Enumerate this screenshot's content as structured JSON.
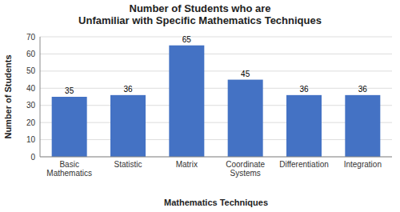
{
  "chart_data": {
    "type": "bar",
    "title": "Number of Students who are\nUnfamiliar with Specific Mathematics Techniques",
    "xlabel": "Mathematics Techniques",
    "ylabel": "Number of Students",
    "categories": [
      "Basic\nMathematics",
      "Statistic",
      "Matrix",
      "Coordinate\nSystems",
      "Differentiation",
      "Integration"
    ],
    "values": [
      35,
      36,
      65,
      45,
      36,
      36
    ],
    "color": "#4472c4",
    "ylim": [
      0,
      70
    ],
    "yticks": [
      0,
      10,
      20,
      30,
      40,
      50,
      60,
      70
    ],
    "grid": true,
    "data_labels": true
  }
}
